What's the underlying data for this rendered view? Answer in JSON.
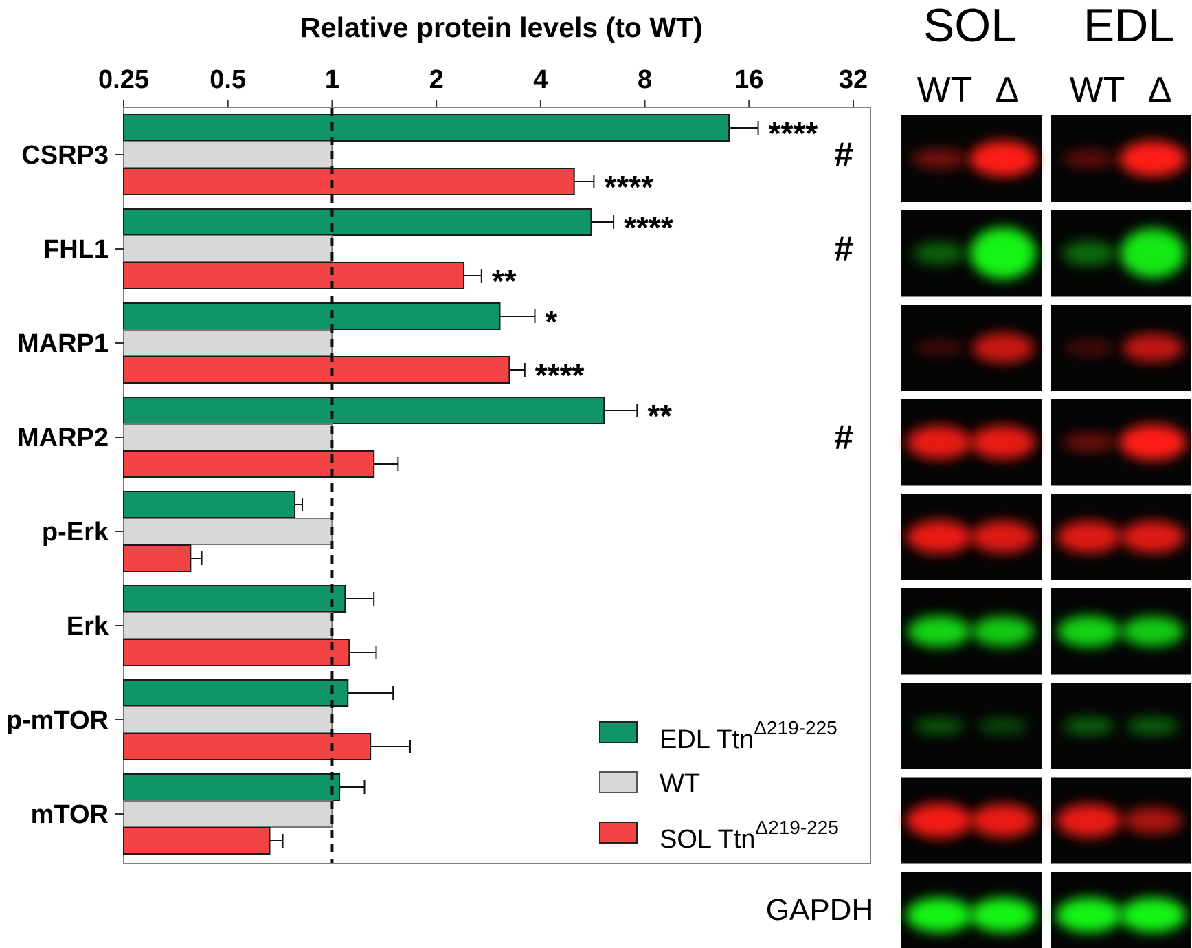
{
  "chart_data": {
    "type": "bar",
    "orientation": "horizontal",
    "title": "Relative protein levels (to WT)",
    "xscale": "log2",
    "xlim": [
      0.25,
      32
    ],
    "x_ticks": [
      0.25,
      0.5,
      1,
      2,
      4,
      8,
      16,
      32
    ],
    "x_tick_labels": [
      "0.25",
      "0.5",
      "1",
      "2",
      "4",
      "8",
      "16",
      "32"
    ],
    "reference_line": 1,
    "categories": [
      "CSRP3",
      "FHL1",
      "MARP1",
      "MARP2",
      "p-Erk",
      "Erk",
      "p-mTOR",
      "mTOR"
    ],
    "series": [
      {
        "name": "EDL Ttn",
        "superscript": "Δ219-225",
        "color": "#109568",
        "values": [
          14.0,
          5.6,
          3.05,
          6.1,
          0.78,
          1.09,
          1.11,
          1.05
        ],
        "errors": [
          17.0,
          6.5,
          3.85,
          7.6,
          0.82,
          1.32,
          1.5,
          1.24
        ],
        "significance": [
          "****",
          "****",
          "*",
          "**",
          "",
          "",
          "",
          ""
        ]
      },
      {
        "name": "WT",
        "superscript": "",
        "color": "#d8d8d8",
        "values": [
          1,
          1,
          1,
          1,
          1,
          1,
          1,
          1
        ],
        "errors": [
          null,
          null,
          null,
          null,
          null,
          null,
          null,
          null
        ],
        "significance": [
          "",
          "",
          "",
          "",
          "",
          "",
          "",
          ""
        ]
      },
      {
        "name": "SOL Ttn",
        "superscript": "Δ219-225",
        "color": "#f24444",
        "values": [
          5.0,
          2.4,
          3.25,
          1.32,
          0.39,
          1.12,
          1.29,
          0.66
        ],
        "errors": [
          5.7,
          2.7,
          3.6,
          1.55,
          0.42,
          1.34,
          1.68,
          0.72
        ],
        "significance": [
          "****",
          "**",
          "****",
          "",
          "",
          "",
          "",
          ""
        ]
      }
    ],
    "hash_marks": [
      "#",
      "#",
      "",
      "#",
      "",
      "",
      "",
      ""
    ]
  },
  "blots": {
    "headers": [
      "SOL",
      "EDL"
    ],
    "lane_labels": [
      "WT",
      "Δ"
    ],
    "loading_control": "GAPDH",
    "rows": [
      {
        "channel": "red",
        "sol": [
          0.35,
          1.0
        ],
        "edl": [
          0.25,
          1.0
        ]
      },
      {
        "channel": "green",
        "sol": [
          0.25,
          0.95
        ],
        "edl": [
          0.3,
          0.9
        ]
      },
      {
        "channel": "red",
        "sol": [
          0.12,
          0.75
        ],
        "edl": [
          0.15,
          0.7
        ]
      },
      {
        "channel": "red",
        "sol": [
          0.9,
          0.9
        ],
        "edl": [
          0.3,
          1.0
        ]
      },
      {
        "channel": "red",
        "sol": [
          0.9,
          0.85
        ],
        "edl": [
          0.85,
          0.85
        ]
      },
      {
        "channel": "green",
        "sol": [
          0.8,
          0.75
        ],
        "edl": [
          0.8,
          0.75
        ]
      },
      {
        "channel": "green",
        "sol": [
          0.2,
          0.15
        ],
        "edl": [
          0.25,
          0.25
        ]
      },
      {
        "channel": "red",
        "sol": [
          0.95,
          0.9
        ],
        "edl": [
          0.9,
          0.6
        ]
      },
      {
        "channel": "green",
        "sol": [
          0.95,
          0.95
        ],
        "edl": [
          0.95,
          0.95
        ]
      }
    ]
  }
}
